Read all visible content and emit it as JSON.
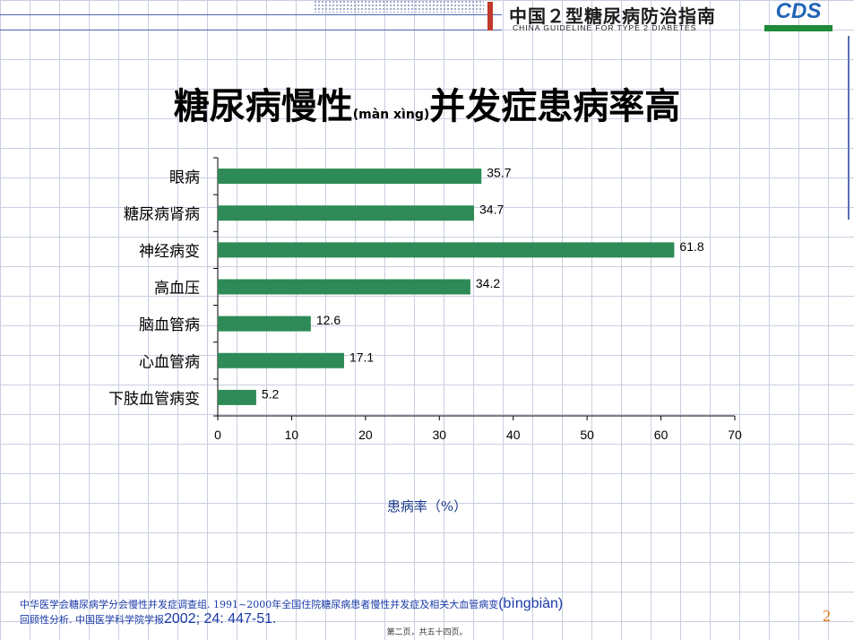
{
  "header": {
    "brand_title": "中国２型糖尿病防治指南",
    "brand_subtitle": "CHINA GUIDELINE FOR TYPE 2 DIABETES",
    "logo_text": "CDS"
  },
  "slide": {
    "title_main": "糖尿病慢性",
    "title_pinyin": "(màn xìng)",
    "title_rest": "并发症患病率高",
    "xlabel": "患病率（%）",
    "footnote_line1_a": "中华医学会糖尿病学分会慢性并发症调查组. 1991~2000年全国住院糖尿病患者慢性并发症及相关大血管病变",
    "footnote_line1_b": "(bìngbiàn)",
    "footnote_line2_a": "回顾性分析. 中国医学科学院学报",
    "footnote_line2_b": "2002; 24: 447-51.",
    "page_count": "第二页，共五十四页。",
    "page_number": "2"
  },
  "chart_data": {
    "type": "bar",
    "orientation": "horizontal",
    "categories": [
      "眼病",
      "糖尿病肾病",
      "神经病变",
      "高血压",
      "脑血管病",
      "心血管病",
      "下肢血管病变"
    ],
    "values": [
      35.7,
      34.7,
      61.8,
      34.2,
      12.6,
      17.1,
      5.2
    ],
    "value_labels": [
      "35.7",
      "34.7",
      "61.8",
      "34.2",
      "12.6",
      "17.1",
      "5.2"
    ],
    "xlim": [
      0,
      70
    ],
    "xticks": [
      0,
      10,
      20,
      30,
      40,
      50,
      60,
      70
    ],
    "xlabel": "患病率（%）",
    "bar_color": "#2e8b57"
  }
}
